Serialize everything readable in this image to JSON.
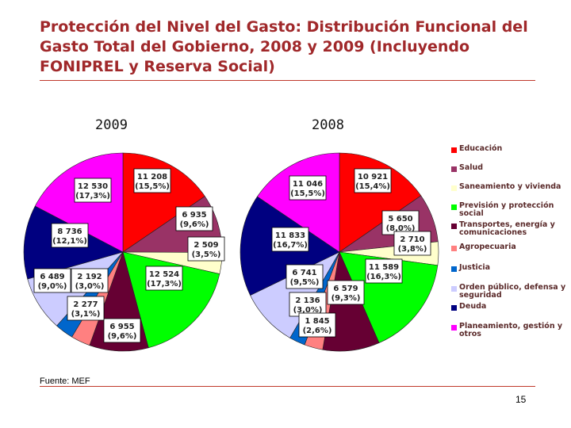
{
  "slide": {
    "title": "Protección del Nivel del Gasto: Distribución Funcional del Gasto Total del Gobierno, 2008 y 2009 (Incluyendo FONIPREL y Reserva Social)",
    "source": "Fuente: MEF",
    "page_number": "15"
  },
  "colors": {
    "title": "#a0282a",
    "rule": "#c0392b",
    "label_border": "#000000",
    "categories": [
      "#ff0000",
      "#993366",
      "#ffffcc",
      "#00ff00",
      "#660033",
      "#ff8080",
      "#ccccff",
      "#000080",
      "#ff00ff"
    ]
  },
  "chart_data": [
    {
      "type": "pie",
      "title": "2009",
      "categories": [
        "Educación",
        "Salud",
        "Saneamiento y vivienda",
        "Previsión y protección social",
        "Transportes, energía y comunicaciones",
        "Agropecuaria",
        "Justicia",
        "Orden público, defensa y seguridad",
        "Deuda",
        "Planeamiento, gestión y otros"
      ],
      "values": [
        11208,
        6935,
        2509,
        12524,
        6955,
        2277,
        2192,
        6489,
        8736,
        12530
      ],
      "value_labels": [
        "11 208",
        "6 935",
        "2 509",
        "12 524",
        "6 955",
        "2 277",
        "2 192",
        "6 489",
        "8 736",
        "12 530"
      ],
      "percent_labels": [
        "(15,5%)",
        "(9,6%)",
        "(3,5%)",
        "(17,3%)",
        "(9,6%)",
        "(3,1%)",
        "(3,0%)",
        "(9,0%)",
        "(12,1%)",
        "(17,3%)"
      ],
      "colors": [
        "#ff0000",
        "#993366",
        "#ffffcc",
        "#00ff00",
        "#660033",
        "#ff8080",
        "#0066cc",
        "#ccccff",
        "#000080",
        "#ff00ff"
      ],
      "legend": "right"
    },
    {
      "type": "pie",
      "title": "2008",
      "categories": [
        "Educación",
        "Salud",
        "Saneamiento y vivienda",
        "Previsión y protección social",
        "Transportes, energía y comunicaciones",
        "Agropecuaria",
        "Justicia",
        "Orden público, defensa y seguridad",
        "Deuda",
        "Planeamiento, gestión y otros"
      ],
      "values": [
        10921,
        5650,
        2710,
        11589,
        6579,
        2136,
        1845,
        6741,
        11833,
        11046
      ],
      "value_labels": [
        "10 921",
        "5 650",
        "2 710",
        "11 589",
        "6 579",
        "2 136",
        "1 845",
        "6 741",
        "11 833",
        "11 046"
      ],
      "percent_labels": [
        "(15,4%)",
        "(8,0%)",
        "(3,8%)",
        "(16,3%)",
        "(9,3%)",
        "(3,0%)",
        "(2,6%)",
        "(9,5%)",
        "(16,7%)",
        "(15,5%)"
      ],
      "colors": [
        "#ff0000",
        "#993366",
        "#ffffcc",
        "#00ff00",
        "#660033",
        "#ff8080",
        "#0066cc",
        "#ccccff",
        "#000080",
        "#ff00ff"
      ],
      "legend": "right"
    }
  ],
  "legend": {
    "items": [
      {
        "label": "Educación",
        "color": "#ff0000"
      },
      {
        "label": "Salud",
        "color": "#993366"
      },
      {
        "label": "Saneamiento y vivienda",
        "color": "#ffffcc"
      },
      {
        "label": "Previsión y protección social",
        "color": "#00ff00"
      },
      {
        "label": "Transportes, energía y comunicaciones",
        "color": "#660033"
      },
      {
        "label": "Agropecuaria",
        "color": "#ff8080"
      },
      {
        "label": "Justicia",
        "color": "#0066cc"
      },
      {
        "label": "Orden público, defensa y seguridad",
        "color": "#ccccff"
      },
      {
        "label": "Deuda",
        "color": "#000080"
      },
      {
        "label": "Planeamiento, gestión y otros",
        "color": "#ff00ff"
      }
    ]
  }
}
